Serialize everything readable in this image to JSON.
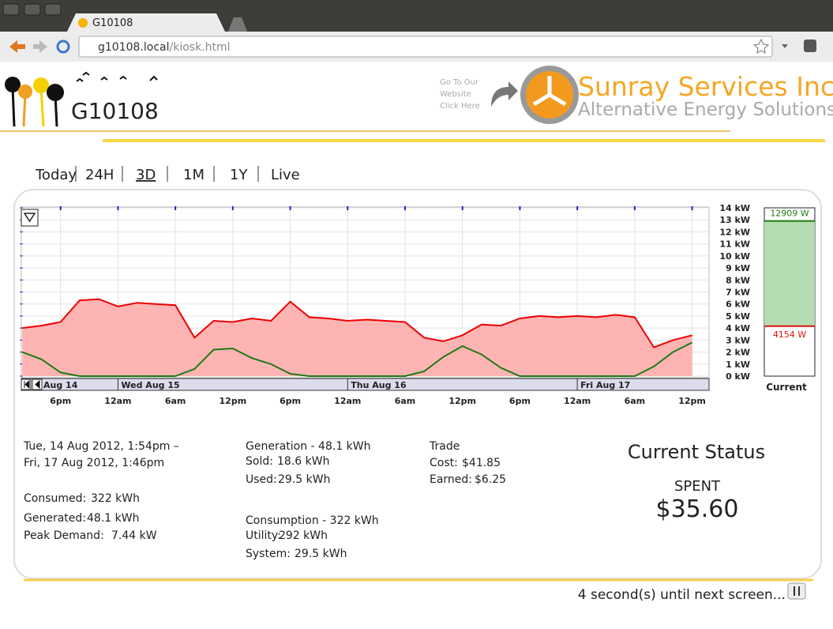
{
  "browser": {
    "tab_title": "G10108",
    "url": {
      "host": "g10108.local",
      "path": "/kiosk.html"
    }
  },
  "header": {
    "site_name": "G10108",
    "website_link": [
      "Go To Our",
      "Website",
      "Click Here"
    ],
    "company": "Sunray Services Inc",
    "tagline": "Alternative Energy Solutions"
  },
  "nav": [
    "Today",
    "24H",
    "3D",
    "1M",
    "1Y",
    "Live"
  ],
  "chart_data": [
    {
      "type": "area",
      "grid": true,
      "x": [
        "2012-08-14T14:00",
        "2012-08-14T16:00",
        "2012-08-14T18:00",
        "2012-08-14T20:00",
        "2012-08-14T22:00",
        "2012-08-15T00:00",
        "2012-08-15T02:00",
        "2012-08-15T04:00",
        "2012-08-15T06:00",
        "2012-08-15T08:00",
        "2012-08-15T10:00",
        "2012-08-15T12:00",
        "2012-08-15T14:00",
        "2012-08-15T16:00",
        "2012-08-15T18:00",
        "2012-08-15T20:00",
        "2012-08-15T22:00",
        "2012-08-16T00:00",
        "2012-08-16T02:00",
        "2012-08-16T04:00",
        "2012-08-16T06:00",
        "2012-08-16T08:00",
        "2012-08-16T10:00",
        "2012-08-16T12:00",
        "2012-08-16T14:00",
        "2012-08-16T16:00",
        "2012-08-16T18:00",
        "2012-08-16T20:00",
        "2012-08-16T22:00",
        "2012-08-17T00:00",
        "2012-08-17T02:00",
        "2012-08-17T04:00",
        "2012-08-17T06:00",
        "2012-08-17T08:00",
        "2012-08-17T10:00",
        "2012-08-17T12:00"
      ],
      "series": [
        {
          "color": "#ee0000",
          "fill": "#ffb4b4",
          "values": [
            4.0,
            4.2,
            4.5,
            6.3,
            6.4,
            5.8,
            6.1,
            6.0,
            5.9,
            3.2,
            4.6,
            4.5,
            4.8,
            4.6,
            6.2,
            4.9,
            4.8,
            4.6,
            4.7,
            4.6,
            4.5,
            3.2,
            2.9,
            3.4,
            4.3,
            4.2,
            4.8,
            5.0,
            4.9,
            5.0,
            4.9,
            5.1,
            4.9,
            2.4,
            3.0,
            3.4
          ]
        },
        {
          "color": "#1e7a12",
          "values": [
            2.0,
            1.4,
            0.3,
            0,
            0,
            0,
            0,
            0,
            0,
            0.6,
            2.2,
            2.3,
            1.5,
            1.0,
            0.2,
            0,
            0,
            0,
            0,
            0,
            0,
            0.4,
            1.6,
            2.5,
            1.8,
            0.7,
            0,
            0,
            0,
            0,
            0,
            0,
            0,
            0.8,
            2.0,
            2.8
          ]
        }
      ],
      "xlim": [
        "2012-08-14T13:54",
        "2012-08-17T13:46"
      ],
      "xticks": [
        {
          "value": "2012-08-14T18:00",
          "label": "6pm"
        },
        {
          "value": "2012-08-15T00:00",
          "label": "12am"
        },
        {
          "value": "2012-08-15T06:00",
          "label": "6am"
        },
        {
          "value": "2012-08-15T12:00",
          "label": "12pm"
        },
        {
          "value": "2012-08-15T18:00",
          "label": "6pm"
        },
        {
          "value": "2012-08-16T00:00",
          "label": "12am"
        },
        {
          "value": "2012-08-16T06:00",
          "label": "6am"
        },
        {
          "value": "2012-08-16T12:00",
          "label": "12pm"
        },
        {
          "value": "2012-08-16T18:00",
          "label": "6pm"
        },
        {
          "value": "2012-08-17T00:00",
          "label": "12am"
        },
        {
          "value": "2012-08-17T06:00",
          "label": "6am"
        },
        {
          "value": "2012-08-17T12:00",
          "label": "12pm"
        }
      ],
      "start_label": "Aug 14",
      "day_ticks": [
        {
          "value": "2012-08-15T00:00",
          "label": "Wed Aug 15"
        },
        {
          "value": "2012-08-16T00:00",
          "label": "Thu Aug 16"
        },
        {
          "value": "2012-08-17T00:00",
          "label": "Fri Aug 17"
        }
      ],
      "ylim": [
        0,
        14
      ],
      "yticks": [
        {
          "value": 0,
          "label": "0 kW"
        },
        {
          "value": 1,
          "label": "1 kW"
        },
        {
          "value": 2,
          "label": "2 kW"
        },
        {
          "value": 3,
          "label": "3 kW"
        },
        {
          "value": 4,
          "label": "4 kW"
        },
        {
          "value": 5,
          "label": "5 kW"
        },
        {
          "value": 6,
          "label": "6 kW"
        },
        {
          "value": 7,
          "label": "7 kW"
        },
        {
          "value": 8,
          "label": "8 kW"
        },
        {
          "value": 9,
          "label": "9 kW"
        },
        {
          "value": 10,
          "label": "10 kW"
        },
        {
          "value": 11,
          "label": "11 kW"
        },
        {
          "value": 12,
          "label": "12 kW"
        },
        {
          "value": 13,
          "label": "13 kW"
        },
        {
          "value": 14,
          "label": "14 kW"
        }
      ]
    },
    {
      "type": "gauge",
      "xlabel": "Current",
      "ylim": [
        0,
        14
      ],
      "values": [
        12.909,
        4.154
      ],
      "value_labels": [
        "12909 W",
        "4154 W"
      ],
      "colors": [
        "#1e7a12",
        "#dd1111"
      ],
      "fill": "#b5dcb0"
    }
  ],
  "stats": {
    "range": [
      "Tue, 14 Aug 2012, 1:54pm –",
      "Fri, 17 Aug 2012, 1:46pm"
    ],
    "summary": [
      [
        "Consumed:",
        "322 kWh"
      ],
      [
        "Generated:",
        "48.1 kWh"
      ],
      [
        "Peak Demand:",
        "7.44 kW"
      ]
    ],
    "generation": {
      "title": "Generation -  48.1 kWh",
      "rows": [
        [
          "Sold:",
          "18.6 kWh"
        ],
        [
          "Used:",
          "29.5 kWh"
        ]
      ]
    },
    "consumption": {
      "title": "Consumption -  322 kWh",
      "rows": [
        [
          "Utility:",
          "292 kWh"
        ],
        [
          "System:",
          "29.5 kWh"
        ]
      ]
    },
    "trade": {
      "title": "Trade",
      "rows": [
        [
          "Cost:",
          "$41.85"
        ],
        [
          "Earned:",
          "$6.25"
        ]
      ]
    }
  },
  "status": {
    "title": "Current Status",
    "label": "SPENT",
    "amount": "$35.60"
  },
  "footer": "4 second(s) until next screen..."
}
